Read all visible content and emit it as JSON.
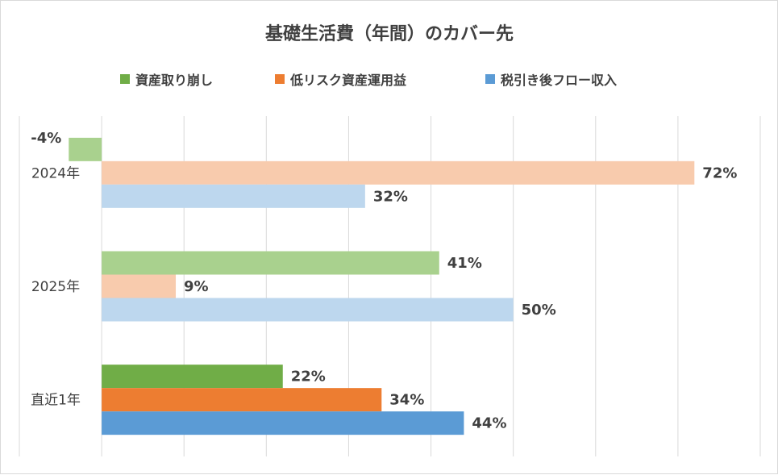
{
  "chart_data": {
    "type": "bar",
    "orientation": "horizontal",
    "title": "基礎生活費（年間）のカバー先",
    "categories": [
      "2024年",
      "2025年",
      "直近1年"
    ],
    "series": [
      {
        "name": "資産取り崩し",
        "values": [
          -4,
          41,
          22
        ],
        "labels": [
          "-4%",
          "41%",
          "22%"
        ]
      },
      {
        "name": "低リスク資産運用益",
        "values": [
          72,
          9,
          34
        ],
        "labels": [
          "72%",
          "9%",
          "34%"
        ]
      },
      {
        "name": "税引き後フロー収入",
        "values": [
          32,
          50,
          44
        ],
        "labels": [
          "32%",
          "50%",
          "44%"
        ]
      }
    ],
    "colors": {
      "highlight": [
        "#70ad47",
        "#ed7d31",
        "#5b9bd5"
      ],
      "faded": [
        "#a9d18e",
        "#f8cbad",
        "#bdd7ee"
      ]
    },
    "highlight_category": "直近1年",
    "xlim": [
      -10,
      80
    ],
    "grid": true,
    "legend_position": "top",
    "unit": "%"
  }
}
